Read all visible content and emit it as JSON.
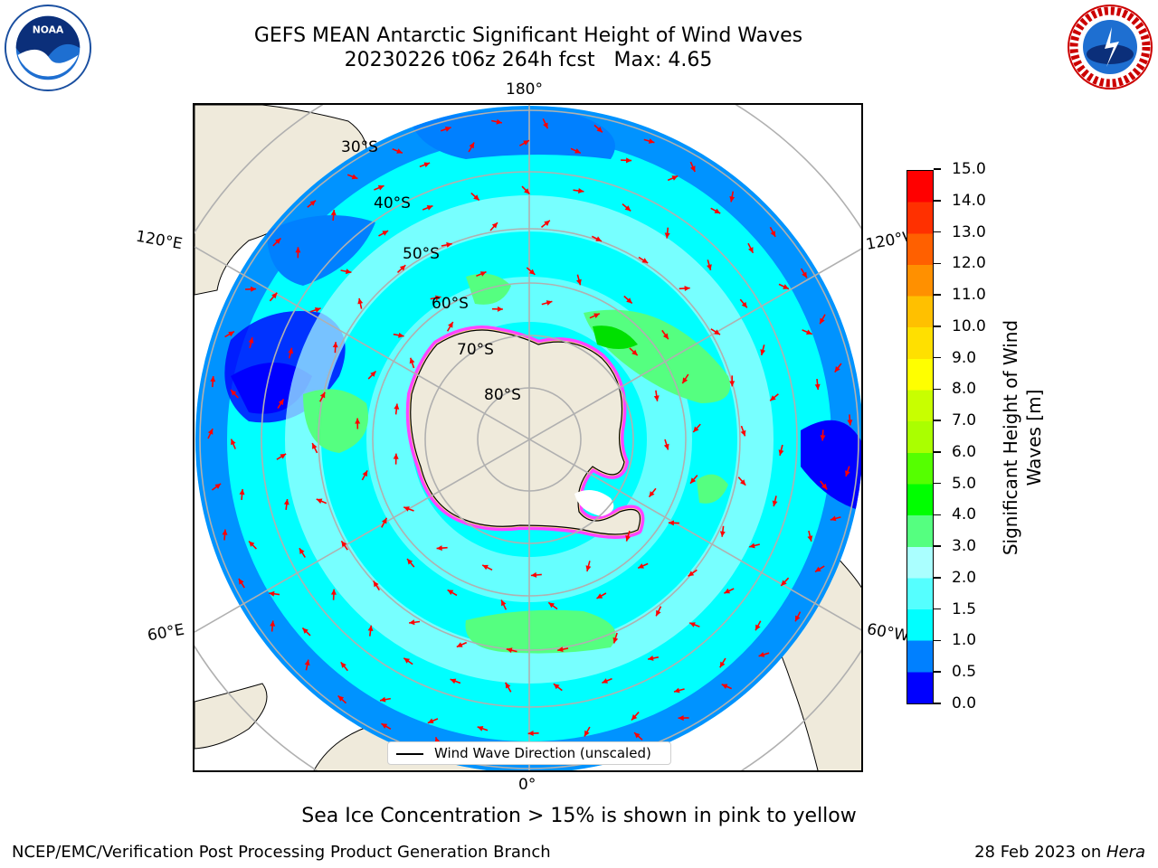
{
  "title_line1": "GEFS MEAN Antarctic Significant Height of Wind Waves",
  "title_line2": "20230226 t06z 264h fcst   Max: 4.65",
  "map": {
    "lon_labels": {
      "top": "180°",
      "bottom": "0°",
      "left_upper": "120°E",
      "left_lower": "60°E",
      "right_upper": "120°W",
      "right_lower": "60°W"
    },
    "lat_labels": [
      "30°S",
      "40°S",
      "50°S",
      "60°S",
      "70°S",
      "80°S"
    ],
    "legend_label": "Wind Wave Direction (unscaled)",
    "land_color": "#efeadb",
    "arrow_color": "#ff0000"
  },
  "colorbar": {
    "label": "Significant Height of Wind Waves [m]",
    "ticks": [
      "0.0",
      "0.5",
      "1.0",
      "1.5",
      "2.0",
      "3.0",
      "4.0",
      "5.0",
      "6.0",
      "7.0",
      "8.0",
      "9.0",
      "10.0",
      "11.0",
      "12.0",
      "13.0",
      "14.0",
      "15.0"
    ],
    "colors": [
      "#0000ff",
      "#0080ff",
      "#00ffff",
      "#55ffff",
      "#aaffff",
      "#55ff80",
      "#00ff00",
      "#55ff00",
      "#aaff00",
      "#c8ff00",
      "#ffff00",
      "#ffe000",
      "#ffc000",
      "#ff9000",
      "#ff6000",
      "#ff3000",
      "#ff0000"
    ]
  },
  "sea_ice_note": "Sea Ice Concentration > 15% is shown in pink to yellow",
  "footer": {
    "left": "NCEP/EMC/Verification Post Processing Product Generation Branch",
    "right_prefix": "28 Feb 2023 on ",
    "right_machine": "Hera"
  }
}
